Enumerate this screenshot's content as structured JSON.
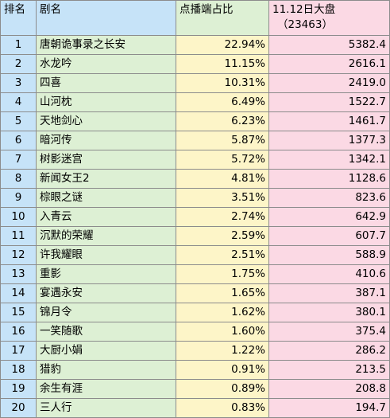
{
  "headers": {
    "rank": "排名",
    "title": "剧名",
    "share": "点播端占比",
    "views_line1": "11.12日大盘",
    "views_line2": "（23463）"
  },
  "colors": {
    "header_rank_title": "#c6e3f8",
    "header_share": "#ddf0d4",
    "header_views": "#fbd9e4",
    "rank_col": "#c6e3f8",
    "title_col": "#ddf0d4",
    "share_col": "#fdf5c8",
    "views_col": "#fbd9e4",
    "border": "#8c8c8c"
  },
  "rows": [
    {
      "rank": "1",
      "title": "唐朝诡事录之长安",
      "share": "22.94%",
      "views": "5382.4"
    },
    {
      "rank": "2",
      "title": "水龙吟",
      "share": "11.15%",
      "views": "2616.1"
    },
    {
      "rank": "3",
      "title": "四喜",
      "share": "10.31%",
      "views": "2419.0"
    },
    {
      "rank": "4",
      "title": "山河枕",
      "share": "6.49%",
      "views": "1522.7"
    },
    {
      "rank": "5",
      "title": "天地剑心",
      "share": "6.23%",
      "views": "1461.7"
    },
    {
      "rank": "6",
      "title": "暗河传",
      "share": "5.87%",
      "views": "1377.3"
    },
    {
      "rank": "7",
      "title": "树影迷宫",
      "share": "5.72%",
      "views": "1342.1"
    },
    {
      "rank": "8",
      "title": "新闻女王2",
      "share": "4.81%",
      "views": "1128.6"
    },
    {
      "rank": "9",
      "title": "棕眼之谜",
      "share": "3.51%",
      "views": "823.6"
    },
    {
      "rank": "10",
      "title": "入青云",
      "share": "2.74%",
      "views": "642.9"
    },
    {
      "rank": "11",
      "title": "沉默的荣耀",
      "share": "2.59%",
      "views": "607.7"
    },
    {
      "rank": "12",
      "title": "许我耀眼",
      "share": "2.51%",
      "views": "588.9"
    },
    {
      "rank": "13",
      "title": "重影",
      "share": "1.75%",
      "views": "410.6"
    },
    {
      "rank": "14",
      "title": "宴遇永安",
      "share": "1.65%",
      "views": "387.1"
    },
    {
      "rank": "15",
      "title": "锦月令",
      "share": "1.62%",
      "views": "380.1"
    },
    {
      "rank": "16",
      "title": "一笑随歌",
      "share": "1.60%",
      "views": "375.4"
    },
    {
      "rank": "17",
      "title": "大厨小娟",
      "share": "1.22%",
      "views": "286.2"
    },
    {
      "rank": "18",
      "title": "猎豹",
      "share": "0.91%",
      "views": "213.5"
    },
    {
      "rank": "19",
      "title": "余生有涯",
      "share": "0.89%",
      "views": "208.8"
    },
    {
      "rank": "20",
      "title": "三人行",
      "share": "0.83%",
      "views": "194.7"
    }
  ]
}
